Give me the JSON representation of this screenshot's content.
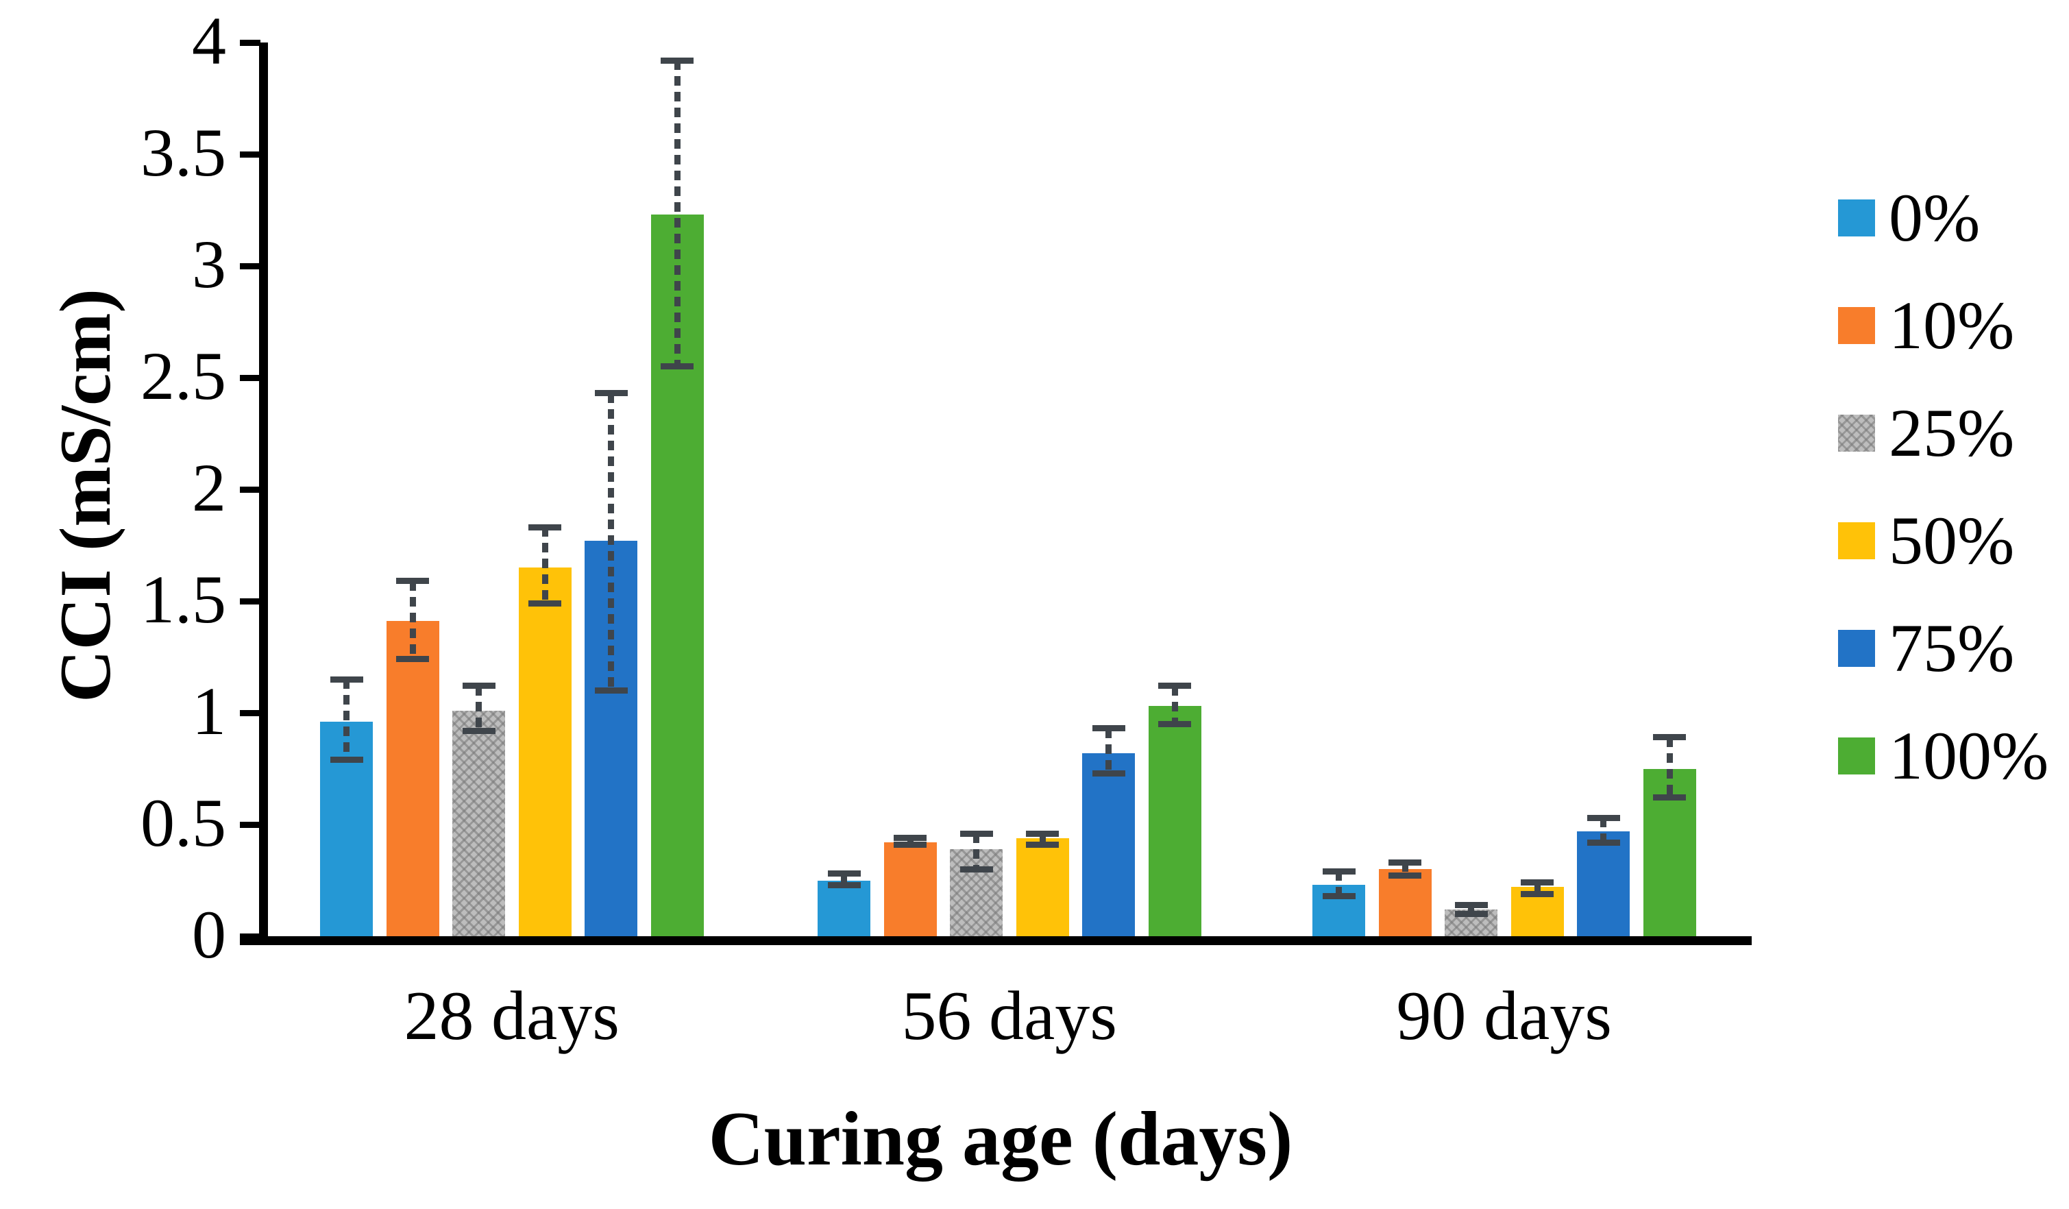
{
  "chart_data": {
    "type": "bar",
    "title": "",
    "xlabel": "Curing age (days)",
    "ylabel": "CCI (mS/cm)",
    "categories": [
      "28 days",
      "56 days",
      "90 days"
    ],
    "ylim": [
      0,
      4
    ],
    "ytick_step": 0.5,
    "yticks": [
      "0",
      "0.5",
      "1",
      "1.5",
      "2",
      "2.5",
      "3",
      "3.5",
      "4"
    ],
    "grid": false,
    "legend_position": "right",
    "error_bar_color": "#3F454B",
    "axis_color": "#000000",
    "series": [
      {
        "name": "0%",
        "color": "#2598D5",
        "pattern": "solid",
        "values": [
          0.96,
          0.25,
          0.23
        ],
        "error_low": [
          0.79,
          0.23,
          0.18
        ],
        "error_high": [
          1.15,
          0.28,
          0.29
        ]
      },
      {
        "name": "10%",
        "color": "#F87D2B",
        "pattern": "solid",
        "values": [
          1.41,
          0.42,
          0.3
        ],
        "error_low": [
          1.24,
          0.41,
          0.27
        ],
        "error_high": [
          1.59,
          0.44,
          0.33
        ]
      },
      {
        "name": "25%",
        "color": "#BDBDBD",
        "pattern": "crosshatch",
        "values": [
          1.01,
          0.39,
          0.12
        ],
        "error_low": [
          0.92,
          0.3,
          0.1
        ],
        "error_high": [
          1.12,
          0.46,
          0.14
        ]
      },
      {
        "name": "50%",
        "color": "#FFC208",
        "pattern": "solid",
        "values": [
          1.65,
          0.44,
          0.22
        ],
        "error_low": [
          1.49,
          0.41,
          0.19
        ],
        "error_high": [
          1.83,
          0.46,
          0.24
        ]
      },
      {
        "name": "75%",
        "color": "#2273C6",
        "pattern": "solid",
        "values": [
          1.77,
          0.82,
          0.47
        ],
        "error_low": [
          1.1,
          0.73,
          0.42
        ],
        "error_high": [
          2.43,
          0.93,
          0.53
        ]
      },
      {
        "name": "100%",
        "color": "#4DAD33",
        "pattern": "solid",
        "values": [
          3.23,
          1.03,
          0.75
        ],
        "error_low": [
          2.55,
          0.95,
          0.62
        ],
        "error_high": [
          3.92,
          1.12,
          0.89
        ]
      }
    ]
  }
}
